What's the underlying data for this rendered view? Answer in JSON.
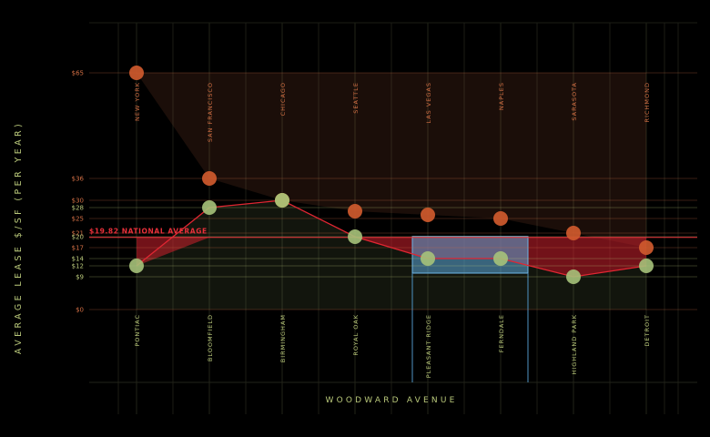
{
  "chart_data": {
    "type": "scatter",
    "ylabel": "AVERAGE LEASE $/SF (PER YEAR)",
    "xlabel": "WOODWARD AVENUE",
    "ylim": [
      0,
      65
    ],
    "y_ticks": [
      {
        "value": 65,
        "label": "$65",
        "color": "#cf6d43"
      },
      {
        "value": 36,
        "label": "$36",
        "color": "#cf6d43"
      },
      {
        "value": 30,
        "label": "$30",
        "color": "#cf6d43"
      },
      {
        "value": 28,
        "label": "$28",
        "color": "#b9c87a"
      },
      {
        "value": 25,
        "label": "$25",
        "color": "#cf6d43"
      },
      {
        "value": 21,
        "label": "$21",
        "color": "#cf6d43"
      },
      {
        "value": 20,
        "label": "$20",
        "color": "#b9c87a"
      },
      {
        "value": 17,
        "label": "$17",
        "color": "#cf6d43"
      },
      {
        "value": 14,
        "label": "$14",
        "color": "#b9c87a"
      },
      {
        "value": 12,
        "label": "$12",
        "color": "#b9c87a"
      },
      {
        "value": 9,
        "label": "$9",
        "color": "#b9c87a"
      },
      {
        "value": 0,
        "label": "$0",
        "color": "#cf6d43"
      }
    ],
    "national_average": {
      "value": 19.82,
      "label": "$19.82 NATIONAL AVERAGE",
      "color": "#e8303a"
    },
    "series": [
      {
        "color": "#cf5a2e",
        "categories": [
          "NEW YORK",
          "SAN FRANCISCO",
          "CHICAGO",
          "SEATTLE",
          "LAS VEGAS",
          "NAPLES",
          "SARASOTA",
          "RICHMOND"
        ],
        "values": [
          65,
          36,
          30,
          27,
          26,
          25,
          21,
          17
        ]
      },
      {
        "color": "#a6c27a",
        "categories": [
          "PONTIAC",
          "BLOOMFIELD",
          "BIRMINGHAM",
          "ROYAL OAK",
          "PLEASANT RIDGE",
          "FERNDALE",
          "HIGHLAND PARK",
          "DETROIT"
        ],
        "values": [
          12,
          28,
          30,
          20,
          14,
          14,
          9,
          12
        ]
      }
    ],
    "highlight": {
      "categories": [
        "PLEASANT RIDGE",
        "FERNDALE"
      ],
      "color": "#5aa6d8"
    },
    "colors": {
      "background": "#000000",
      "axis_text": "#b9c87a",
      "orange": "#cf6d43",
      "green": "#a6c27a",
      "red": "#d0212d",
      "blue": "#5aa6d8"
    }
  }
}
